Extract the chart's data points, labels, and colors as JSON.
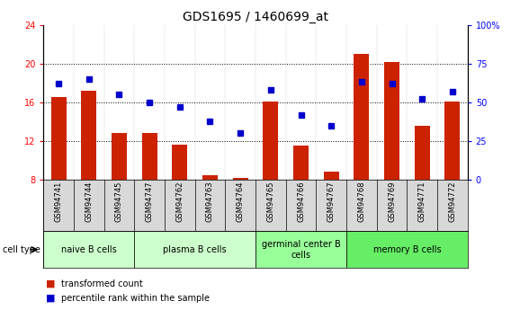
{
  "title": "GDS1695 / 1460699_at",
  "samples": [
    "GSM94741",
    "GSM94744",
    "GSM94745",
    "GSM94747",
    "GSM94762",
    "GSM94763",
    "GSM94764",
    "GSM94765",
    "GSM94766",
    "GSM94767",
    "GSM94768",
    "GSM94769",
    "GSM94771",
    "GSM94772"
  ],
  "transformed_count": [
    16.5,
    17.2,
    12.8,
    12.8,
    11.6,
    8.5,
    8.2,
    16.1,
    11.5,
    8.8,
    21.0,
    20.2,
    13.6,
    16.1
  ],
  "percentile_rank": [
    62,
    65,
    55,
    50,
    47,
    38,
    30,
    58,
    42,
    35,
    63,
    62,
    52,
    57
  ],
  "ylim_left": [
    8,
    24
  ],
  "ylim_right": [
    0,
    100
  ],
  "yticks_left": [
    8,
    12,
    16,
    20,
    24
  ],
  "yticks_right": [
    0,
    25,
    50,
    75,
    100
  ],
  "bar_color": "#cc2200",
  "marker_color": "#0000cc",
  "cell_groups": [
    {
      "label": "naive B cells",
      "start": 0,
      "end": 3,
      "color": "#ccffcc"
    },
    {
      "label": "plasma B cells",
      "start": 3,
      "end": 7,
      "color": "#ccffcc"
    },
    {
      "label": "germinal center B\ncells",
      "start": 7,
      "end": 10,
      "color": "#99ff99"
    },
    {
      "label": "memory B cells",
      "start": 10,
      "end": 14,
      "color": "#66ee66"
    }
  ],
  "cell_type_label": "cell type",
  "legend_items": [
    {
      "color": "#cc2200",
      "label": "transformed count"
    },
    {
      "color": "#0000cc",
      "label": "percentile rank within the sample"
    }
  ],
  "bar_bottom": 8,
  "title_fontsize": 10,
  "tick_fontsize": 7,
  "label_fontsize": 7,
  "sample_fontsize": 6,
  "group_fontsize": 7,
  "legend_fontsize": 7
}
